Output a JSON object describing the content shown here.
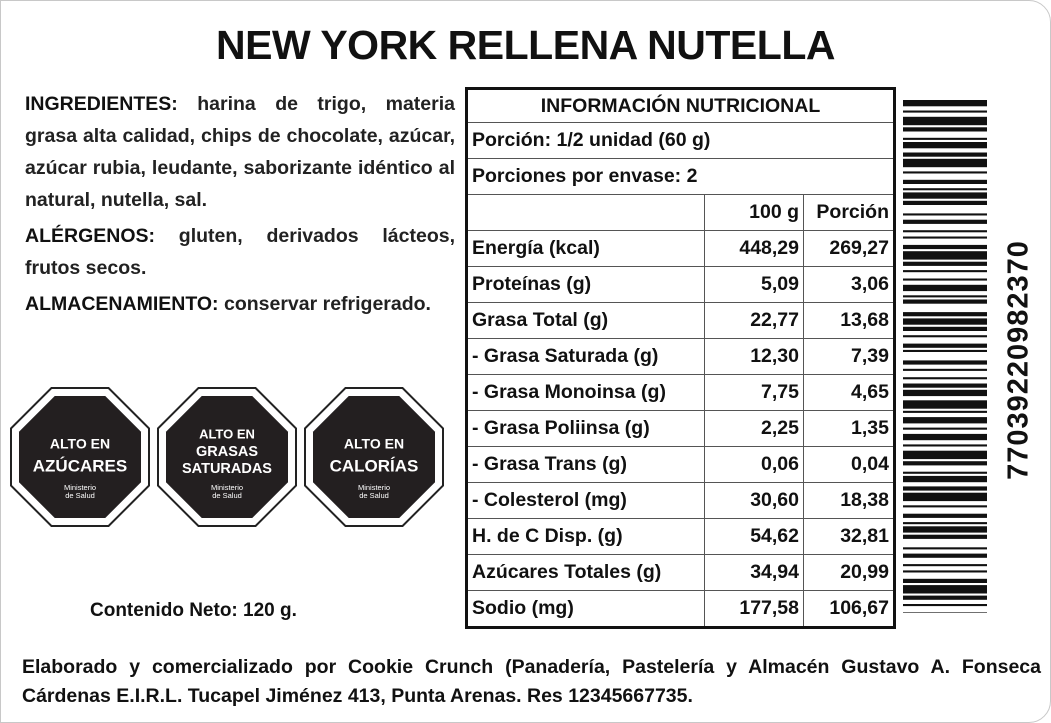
{
  "title": "NEW YORK RELLENA NUTELLA",
  "ingredients": {
    "label": "INGREDIENTES:",
    "text": "harina de trigo, materia grasa alta calidad, chips de chocolate, azúcar, azúcar rubia, leudante, saborizante idéntico al natural, nutella, sal."
  },
  "allergens": {
    "label": "ALÉRGENOS:",
    "text": "gluten, derivados lácteos, frutos secos."
  },
  "storage": {
    "label": "ALMACENAMIENTO:",
    "text": "conservar refrigerado."
  },
  "warnings": [
    {
      "lines": [
        "ALTO EN",
        "AZÚCARES"
      ],
      "authority": [
        "Ministerio",
        "de Salud"
      ]
    },
    {
      "lines": [
        "ALTO EN",
        "GRASAS",
        "SATURADAS"
      ],
      "authority": [
        "Ministerio",
        "de Salud"
      ]
    },
    {
      "lines": [
        "ALTO EN",
        "CALORÍAS"
      ],
      "authority": [
        "Ministerio",
        "de Salud"
      ]
    }
  ],
  "net_content": "Contenido Neto: 120 g.",
  "nutrition": {
    "title": "INFORMACIÓN NUTRICIONAL",
    "serving": "Porción: 1/2 unidad (60 g)",
    "servings_per_container": "Porciones por envase: 2",
    "columns": [
      "100 g",
      "Porción"
    ],
    "rows": [
      [
        "Energía (kcal)",
        "448,29",
        "269,27"
      ],
      [
        "Proteínas (g)",
        "5,09",
        "3,06"
      ],
      [
        "Grasa Total (g)",
        "22,77",
        "13,68"
      ],
      [
        "- Grasa Saturada (g)",
        "12,30",
        "7,39"
      ],
      [
        "- Grasa Monoinsa (g)",
        "7,75",
        "4,65"
      ],
      [
        "- Grasa Poliinsa (g)",
        "2,25",
        "1,35"
      ],
      [
        "- Grasa Trans (g)",
        "0,06",
        "0,04"
      ],
      [
        "- Colesterol (mg)",
        "30,60",
        "18,38"
      ],
      [
        "H. de C Disp. (g)",
        "54,62",
        "32,81"
      ],
      [
        "Azúcares Totales (g)",
        "34,94",
        "20,99"
      ],
      [
        "Sodio (mg)",
        "177,58",
        "106,67"
      ]
    ]
  },
  "barcode": "77039220982370",
  "footer": "Elaborado y comercializado por Cookie Crunch (Panadería, Pastelería y Almacén Gustavo A. Fonseca Cárdenas E.I.R.L. Tucapel Jiménez 413, Punta Arenas. Res 12345667735."
}
